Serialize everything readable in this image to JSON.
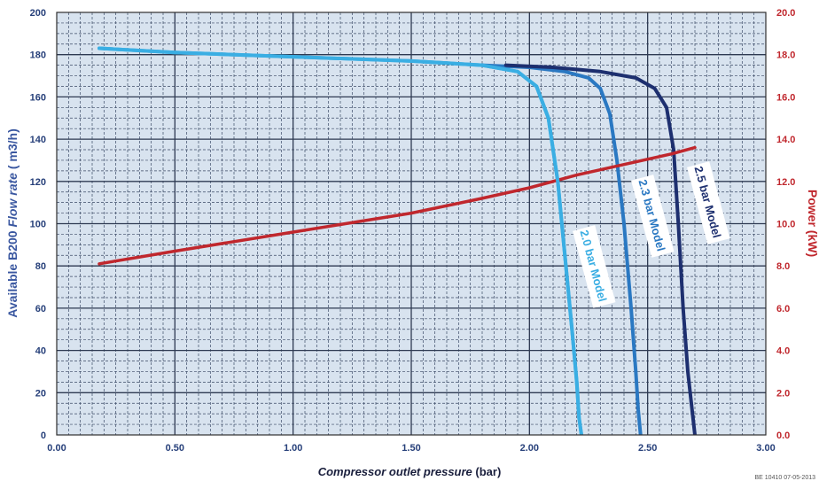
{
  "chart_data": {
    "type": "line",
    "title": "",
    "xlabel": "Compressor outlet pressure (bar)",
    "xlabel_italic_part": "Compressor outlet pressure",
    "xlabel_unit_part": " (bar)",
    "ylabel": "Available B200 Flow rate ( m3/h)",
    "ylabel_parts": [
      "Available B200 ",
      "Flow rate",
      " ( m3/h)"
    ],
    "y2label": "Power (kW)",
    "xlim": [
      0,
      3
    ],
    "ylim": [
      0,
      200
    ],
    "y2lim": [
      0,
      20
    ],
    "x_ticks": [
      "0.00",
      "0.50",
      "1.00",
      "1.50",
      "2.00",
      "2.50",
      "3.00"
    ],
    "y_ticks": [
      "0",
      "20",
      "40",
      "60",
      "80",
      "100",
      "120",
      "140",
      "160",
      "180",
      "200"
    ],
    "y2_ticks": [
      "0.0",
      "2.0",
      "4.0",
      "6.0",
      "8.0",
      "10.0",
      "12.0",
      "14.0",
      "16.0",
      "18.0",
      "20.0"
    ],
    "grid": true,
    "background_color": "#d8e3ef",
    "series": [
      {
        "name": "2.0 bar Model",
        "axis": "left",
        "color": "#3aaee3",
        "x": [
          0.18,
          0.5,
          1.0,
          1.5,
          1.8,
          1.95,
          2.03,
          2.08,
          2.12,
          2.15,
          2.18,
          2.2,
          2.21,
          2.22
        ],
        "y": [
          183,
          181,
          179,
          177,
          175,
          172,
          165,
          150,
          120,
          85,
          50,
          25,
          8,
          0
        ]
      },
      {
        "name": "2.3 bar Model",
        "axis": "left",
        "color": "#2a78c2",
        "x": [
          1.8,
          2.0,
          2.15,
          2.25,
          2.3,
          2.34,
          2.37,
          2.4,
          2.43,
          2.45,
          2.46,
          2.47
        ],
        "y": [
          175,
          174,
          172,
          169,
          164,
          152,
          130,
          100,
          60,
          30,
          12,
          0
        ]
      },
      {
        "name": "2.5 bar Model",
        "axis": "left",
        "color": "#1d2f6f",
        "x": [
          1.9,
          2.1,
          2.3,
          2.45,
          2.53,
          2.58,
          2.61,
          2.63,
          2.65,
          2.67,
          2.69,
          2.7
        ],
        "y": [
          175,
          174,
          172,
          169,
          164,
          155,
          135,
          100,
          60,
          30,
          10,
          0
        ]
      },
      {
        "name": "Power (kW)",
        "axis": "right",
        "color": "#c0272d",
        "x": [
          0.18,
          0.5,
          1.0,
          1.5,
          1.8,
          2.0,
          2.2,
          2.4,
          2.6,
          2.7
        ],
        "y": [
          8.1,
          8.7,
          9.6,
          10.5,
          11.2,
          11.7,
          12.3,
          12.8,
          13.3,
          13.6
        ]
      }
    ],
    "annotations": [
      "2.0 bar Model",
      "2.3 bar Model",
      "2.5 bar Model"
    ],
    "footnote": "BE 10410 07-05-2013"
  }
}
